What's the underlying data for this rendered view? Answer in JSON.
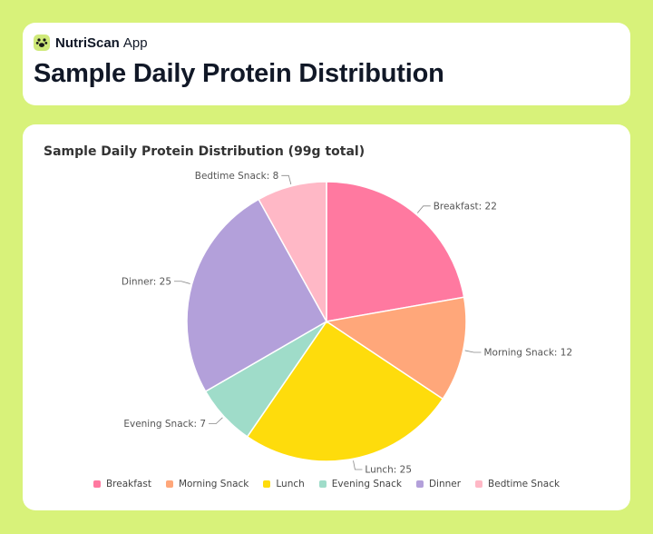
{
  "brand": {
    "name": "NutriScan",
    "suffix": "App",
    "logo_icon": "paw-icon"
  },
  "page": {
    "title": "Sample Daily Protein Distribution"
  },
  "chart_data": {
    "type": "pie",
    "title": "Sample Daily Protein Distribution (99g total)",
    "categories": [
      "Breakfast",
      "Morning Snack",
      "Lunch",
      "Evening Snack",
      "Dinner",
      "Bedtime Snack"
    ],
    "values": [
      22,
      12,
      25,
      7,
      25,
      8
    ],
    "labels": [
      "Breakfast: 22",
      "Morning Snack: 12",
      "Lunch: 25",
      "Evening Snack: 7",
      "Dinner: 25",
      "Bedtime Snack: 8"
    ],
    "colors": [
      "#ff79a0",
      "#ffa77a",
      "#fedc0c",
      "#9fdcc9",
      "#b3a0da",
      "#ffb8c6"
    ],
    "legend": "bottom",
    "start": "top",
    "direction": "clockwise"
  }
}
